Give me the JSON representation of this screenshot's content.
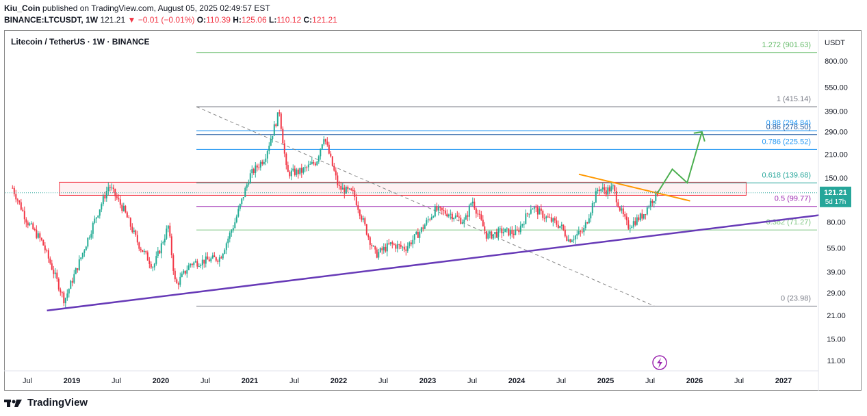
{
  "header": {
    "user": "Kiu_Coin",
    "published_text": "published on TradingView.com, August 05, 2025 02:49:57 EST",
    "symbol": "BINANCE:LTCUSDT, 1W",
    "price": "121.21",
    "change": "▼ −0.01 (−0.01%)",
    "o_label": "O:",
    "o_value": "110.39",
    "h_label": "H:",
    "h_value": "125.06",
    "l_label": "L:",
    "l_value": "110.12",
    "c_label": "C:",
    "c_value": "121.21"
  },
  "legend_title": "Litecoin / TetherUS · 1W · BINANCE",
  "currency": "USDT",
  "price_tag": {
    "value": "121.21",
    "countdown": "5d 17h"
  },
  "footer": {
    "brand": "TradingView"
  },
  "colors": {
    "up": "#22ab94",
    "down": "#f23645",
    "trend_support": "#673ab7",
    "trend_resist": "#ff9800",
    "projection": "#4caf50",
    "fib_top": "#66bb6a",
    "fib_blue": "#2196f3",
    "fib_mid": "#9c27b0",
    "fib_low": "#81c784",
    "fib_zero": "#9e9e9e"
  },
  "chart_data": {
    "type": "candlestick",
    "scale": "log",
    "y_ticks": [
      "800.00",
      "550.00",
      "390.00",
      "290.00",
      "210.00",
      "150.00",
      "80.00",
      "55.00",
      "39.00",
      "29.00",
      "21.00",
      "15.00",
      "11.00"
    ],
    "x_ticks": [
      "Jul",
      "2019",
      "Jul",
      "2020",
      "Jul",
      "2021",
      "Jul",
      "2022",
      "Jul",
      "2023",
      "Jul",
      "2024",
      "Jul",
      "2025",
      "Jul",
      "2026",
      "Jul",
      "2027"
    ],
    "fib_levels": [
      {
        "label": "1.272 (901.63)",
        "value": 901.63,
        "color": "#66bb6a"
      },
      {
        "label": "1 (415.14)",
        "value": 415.14,
        "color": "#787b86"
      },
      {
        "label": "0.88 (294.84)",
        "value": 294.84,
        "color": "#2196f3"
      },
      {
        "label": "0.86 (278.50)",
        "value": 278.5,
        "color": "#1e5aa0"
      },
      {
        "label": "0.786 (225.52)",
        "value": 225.52,
        "color": "#2196f3"
      },
      {
        "label": "0.618 (139.68)",
        "value": 139.68,
        "color": "#26a69a"
      },
      {
        "label": "0.5 (99.77)",
        "value": 99.77,
        "color": "#9c27b0"
      },
      {
        "label": "0.382 (71.27)",
        "value": 71.27,
        "color": "#81c784"
      },
      {
        "label": "0 (23.98)",
        "value": 23.98,
        "color": "#787b86"
      }
    ],
    "resistance_zone": {
      "low": 117,
      "high": 141
    },
    "price_path": [
      [
        "2018-05",
        130
      ],
      [
        "2018-07",
        80
      ],
      [
        "2018-09",
        60
      ],
      [
        "2018-12",
        26
      ],
      [
        "2019-02",
        45
      ],
      [
        "2019-04",
        80
      ],
      [
        "2019-06",
        135
      ],
      [
        "2019-08",
        95
      ],
      [
        "2019-10",
        58
      ],
      [
        "2019-12",
        42
      ],
      [
        "2020-02",
        75
      ],
      [
        "2020-03",
        32
      ],
      [
        "2020-05",
        44
      ],
      [
        "2020-07",
        46
      ],
      [
        "2020-09",
        48
      ],
      [
        "2020-11",
        80
      ],
      [
        "2021-01",
        155
      ],
      [
        "2021-03",
        200
      ],
      [
        "2021-05",
        390
      ],
      [
        "2021-06",
        160
      ],
      [
        "2021-08",
        165
      ],
      [
        "2021-10",
        190
      ],
      [
        "2021-11",
        275
      ],
      [
        "2022-01",
        130
      ],
      [
        "2022-03",
        120
      ],
      [
        "2022-05",
        65
      ],
      [
        "2022-06",
        50
      ],
      [
        "2022-08",
        58
      ],
      [
        "2022-10",
        55
      ],
      [
        "2022-12",
        70
      ],
      [
        "2023-02",
        95
      ],
      [
        "2023-04",
        90
      ],
      [
        "2023-06",
        80
      ],
      [
        "2023-07",
        110
      ],
      [
        "2023-09",
        65
      ],
      [
        "2023-11",
        70
      ],
      [
        "2024-01",
        68
      ],
      [
        "2024-03",
        100
      ],
      [
        "2024-05",
        85
      ],
      [
        "2024-07",
        75
      ],
      [
        "2024-08",
        62
      ],
      [
        "2024-10",
        70
      ],
      [
        "2024-12",
        130
      ],
      [
        "2025-01",
        125
      ],
      [
        "2025-02",
        130
      ],
      [
        "2025-03",
        95
      ],
      [
        "2025-04",
        75
      ],
      [
        "2025-06",
        88
      ],
      [
        "2025-07",
        105
      ],
      [
        "2025-08",
        121
      ]
    ],
    "projection": [
      [
        "2025-08",
        121
      ],
      [
        "2025-10",
        170
      ],
      [
        "2025-12",
        140
      ],
      [
        "2026-02",
        290
      ],
      [
        "2026-03",
        250
      ]
    ]
  }
}
